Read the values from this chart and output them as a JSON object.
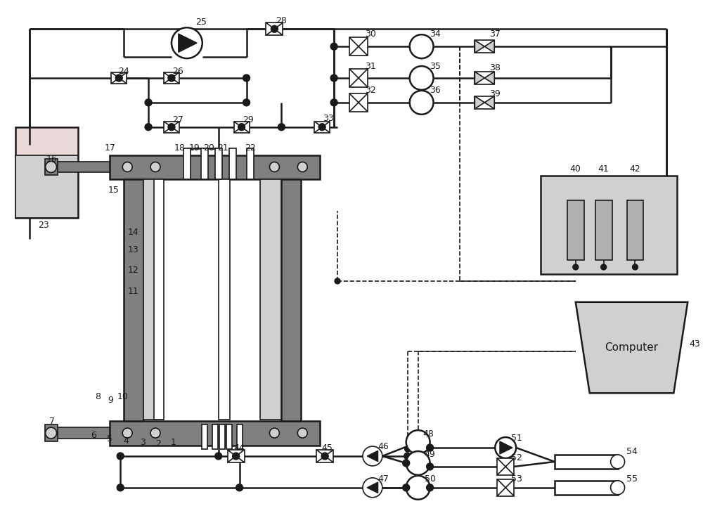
{
  "figsize": [
    10.0,
    7.47
  ],
  "dpi": 100,
  "xlim": [
    0,
    1000
  ],
  "ylim": [
    0,
    747
  ],
  "bg": "#ffffff",
  "black": "#1a1a1a",
  "gray_dark": "#808080",
  "gray_med": "#b0b0b0",
  "gray_light": "#d0d0d0",
  "pink": "#e8d8d8",
  "lw_main": 1.8,
  "lw_thin": 1.2,
  "lw_dash": 1.2
}
